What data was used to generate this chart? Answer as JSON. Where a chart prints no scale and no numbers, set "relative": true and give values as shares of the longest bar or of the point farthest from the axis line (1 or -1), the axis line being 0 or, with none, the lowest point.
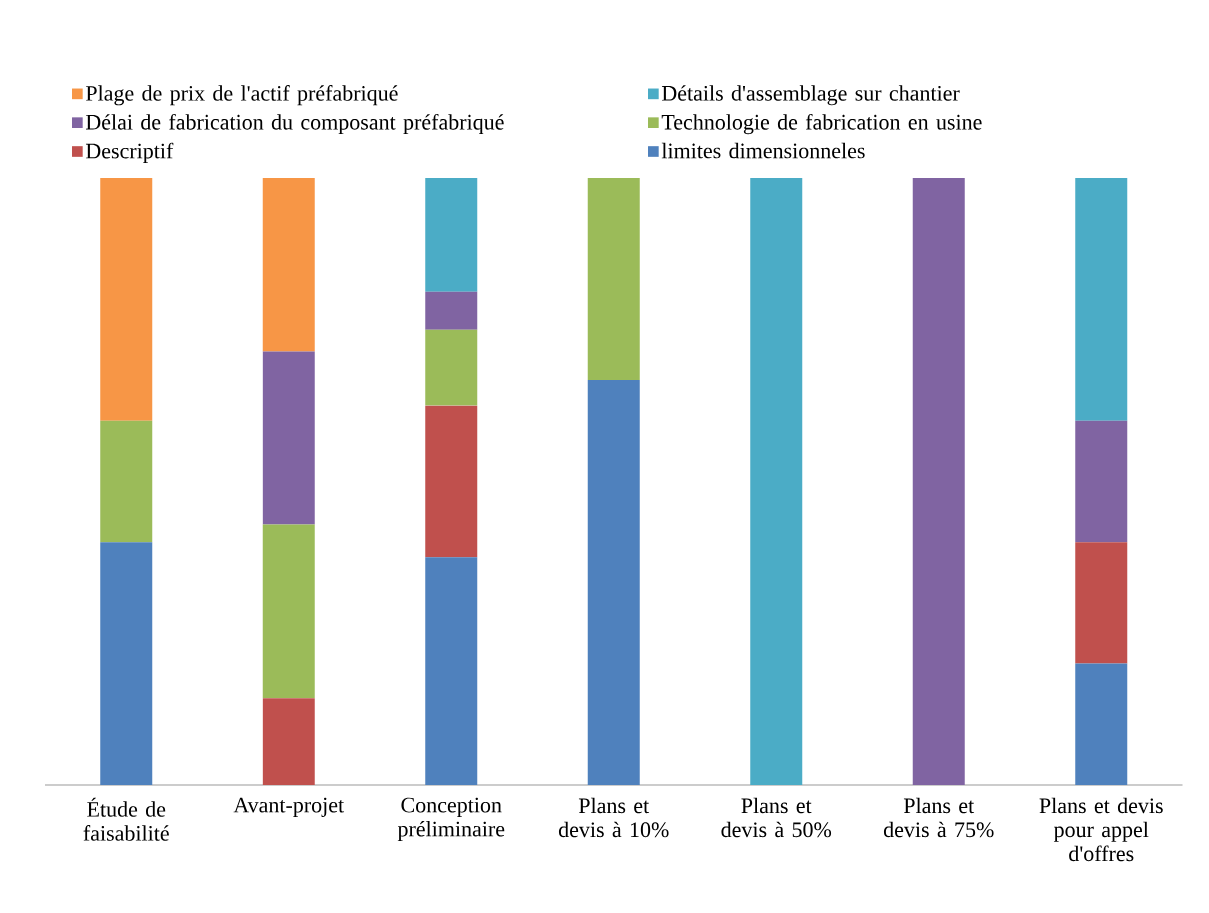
{
  "chart_data": {
    "type": "bar",
    "stacked": true,
    "relative": true,
    "legend": "top",
    "categories": [
      "Étude de faisabilité",
      "Avant-projet",
      "Conception préliminaire",
      "Plans et devis à 10%",
      "Plans et devis à 50%",
      "Plans et devis à 75%",
      "Plans et devis pour appel d'offres"
    ],
    "series": [
      {
        "name": "limites dimensionneles",
        "color": "#4f81bd",
        "values": [
          0.4,
          0,
          0.375,
          0.667,
          0,
          0,
          0.2
        ]
      },
      {
        "name": "Descriptif",
        "color": "#c0504d",
        "values": [
          0,
          0.143,
          0.25,
          0,
          0,
          0,
          0.2
        ]
      },
      {
        "name": "Technologie de fabrication en usine",
        "color": "#9bbb59",
        "values": [
          0.2,
          0.286,
          0.125,
          0.333,
          0,
          0,
          0
        ]
      },
      {
        "name": "Délai de fabrication du composant préfabriqué",
        "color": "#8064a2",
        "values": [
          0,
          0.285,
          0.0625,
          0,
          0,
          1,
          0.2
        ]
      },
      {
        "name": "Détails d'assemblage sur chantier",
        "color": "#4bacc6",
        "values": [
          0,
          0,
          0.1875,
          0,
          1,
          0,
          0.4
        ]
      },
      {
        "name": "Plage de prix de l'actif préfabriqué",
        "color": "#f79646",
        "values": [
          0.4,
          0.286,
          0,
          0,
          0,
          0,
          0
        ]
      }
    ]
  }
}
